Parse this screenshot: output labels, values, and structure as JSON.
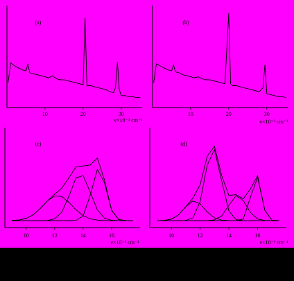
{
  "chart_data": [
    {
      "type": "line",
      "label": "(a)",
      "x_label": "ν×10⁻³ cm⁻¹",
      "x": [
        0.3,
        1,
        2,
        3,
        4,
        5,
        5.5,
        6,
        7,
        8,
        9,
        10,
        11,
        12,
        13,
        14,
        15,
        16,
        17,
        18,
        19,
        20,
        20.5,
        21,
        22,
        23,
        24,
        25,
        26,
        27,
        28,
        28.5,
        29,
        29.5,
        30,
        31,
        32,
        33,
        34,
        35
      ],
      "series": [
        {
          "color": "#000000",
          "values": [
            25,
            45,
            42,
            40,
            38,
            37,
            44,
            35,
            34,
            33,
            32,
            31,
            30,
            32,
            29,
            28,
            28,
            27,
            26,
            25,
            24,
            23,
            90,
            22,
            22,
            21,
            20,
            19,
            18,
            16,
            15,
            20,
            46,
            18,
            12,
            12,
            11,
            11,
            10,
            10
          ]
        }
      ],
      "xlim": [
        0,
        35.5
      ],
      "xticks": [
        10,
        20,
        30
      ],
      "ylim": [
        0,
        100
      ]
    },
    {
      "type": "line",
      "label": "(b)",
      "x_label": "ν×10⁻³ cm⁻¹",
      "x": [
        0.3,
        1,
        2,
        3,
        4,
        5,
        5.5,
        6,
        7,
        8,
        9,
        10,
        11,
        12,
        13,
        14,
        15,
        16,
        17,
        18,
        19,
        20,
        20.5,
        21,
        22,
        23,
        24,
        25,
        26,
        27,
        28,
        28.5,
        29,
        29.5,
        30,
        31,
        32,
        33,
        34,
        35
      ],
      "series": [
        {
          "color": "#000000",
          "values": [
            25,
            44,
            42,
            40,
            38,
            37,
            43,
            36,
            35,
            33,
            32,
            31,
            30,
            31,
            29,
            28,
            28,
            27,
            26,
            25,
            24,
            95,
            24,
            22,
            22,
            21,
            20,
            19,
            18,
            17,
            16,
            18,
            20,
            43,
            14,
            13,
            12,
            11,
            11,
            10
          ]
        }
      ],
      "xlim": [
        0,
        35.5
      ],
      "xticks": [
        10,
        20,
        30
      ],
      "ylim": [
        0,
        100
      ]
    },
    {
      "type": "line",
      "label": "(c)",
      "x_label": "ν×10⁻³ cm⁻¹",
      "x": [
        9,
        9.5,
        10,
        10.5,
        11,
        11.5,
        12,
        12.5,
        13,
        13.5,
        14,
        14.5,
        15,
        15.5,
        16,
        16.5,
        17,
        17.5
      ],
      "series": [
        {
          "color": "#000000",
          "values": [
            0.2,
            0.7,
            2.5,
            6.6,
            13.6,
            22.1,
            29.3,
            36.1,
            47.4,
            59.7,
            60.6,
            61.7,
            69.5,
            44.9,
            11.9,
            1.2,
            0,
            0
          ]
        },
        {
          "color": "#000000",
          "values": [
            0.2,
            0.7,
            2.5,
            6.6,
            13.6,
            21.9,
            27.4,
            26.8,
            20.3,
            12.0,
            5.5,
            2.0,
            0.6,
            0.1,
            0,
            0,
            0,
            0
          ]
        },
        {
          "color": "#000000",
          "values": [
            0,
            0,
            0,
            0,
            0,
            0.2,
            1.9,
            9.3,
            27.1,
            47.4,
            49.9,
            31.5,
            12.0,
            2.7,
            0.4,
            0,
            0,
            0
          ]
        },
        {
          "color": "#000000",
          "values": [
            0,
            0,
            0,
            0,
            0,
            0,
            0,
            0,
            0,
            0.3,
            5.2,
            28.2,
            56.9,
            42.1,
            11.5,
            1.2,
            0,
            0
          ]
        }
      ],
      "xlim": [
        8.5,
        18
      ],
      "xticks": [
        10,
        12,
        14,
        16
      ],
      "ylim": [
        0,
        100
      ]
    },
    {
      "type": "line",
      "label": "(d)",
      "x_label": "ν×10⁻³ cm⁻¹",
      "x": [
        9,
        9.5,
        10,
        10.5,
        11,
        11.5,
        12,
        12.5,
        13,
        13.5,
        14,
        14.5,
        15,
        15.5,
        16,
        16.5,
        17,
        17.5
      ],
      "series": [
        {
          "color": "#000000",
          "values": [
            0,
            0.2,
            1.6,
            6.4,
            15.4,
            24.9,
            39.7,
            71.2,
            82.5,
            49.9,
            27.9,
            28.8,
            24.2,
            35.1,
            49.8,
            11.7,
            0.4,
            0
          ]
        },
        {
          "color": "#000000",
          "values": [
            0,
            0.2,
            1.6,
            6.4,
            15.2,
            21.8,
            18.7,
            9.6,
            3.0,
            0.6,
            0.1,
            0,
            0,
            0,
            0,
            0,
            0,
            0
          ]
        },
        {
          "color": "#000000",
          "values": [
            0,
            0,
            0,
            0,
            0.2,
            3.1,
            21.0,
            61.5,
            78.7,
            44.1,
            10.8,
            1.2,
            0,
            0,
            0,
            0,
            0,
            0
          ]
        },
        {
          "color": "#000000",
          "values": [
            0,
            0,
            0,
            0,
            0,
            0,
            0,
            0.1,
            0.8,
            5.2,
            17.0,
            27.6,
            22.4,
            9.1,
            1.8,
            0.2,
            0,
            0
          ]
        },
        {
          "color": "#000000",
          "values": [
            0,
            0,
            0,
            0,
            0,
            0,
            0,
            0,
            0,
            0,
            0,
            0,
            1.8,
            26.0,
            48.0,
            11.5,
            0.4,
            0
          ]
        }
      ],
      "xlim": [
        8.5,
        18
      ],
      "xticks": [
        10,
        12,
        14,
        16
      ],
      "ylim": [
        0,
        100
      ]
    }
  ]
}
